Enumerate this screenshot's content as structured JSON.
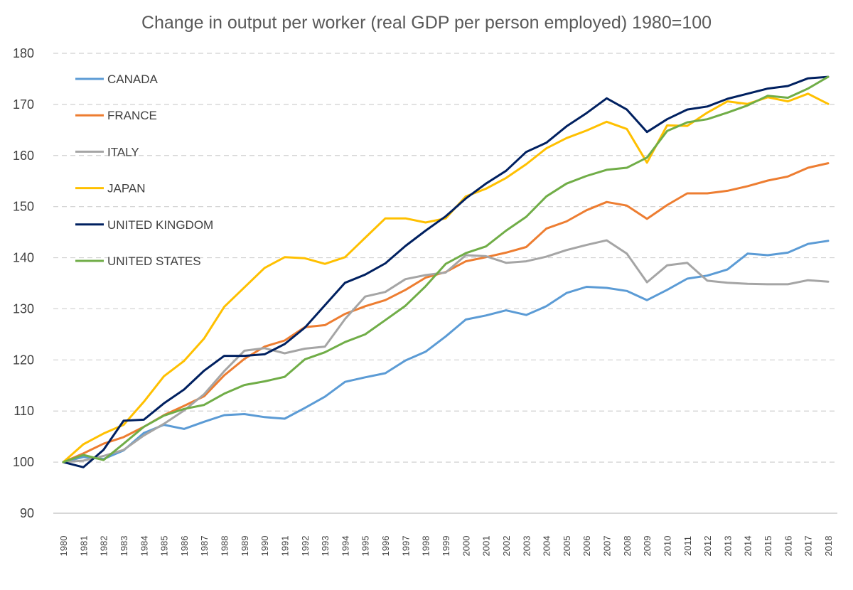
{
  "chart_data": {
    "type": "line",
    "title": "Change in output per worker (real GDP per person employed) 1980=100",
    "xlabel": "",
    "ylabel": "",
    "ylim": [
      90,
      180
    ],
    "yticks": [
      90,
      100,
      110,
      120,
      130,
      140,
      150,
      160,
      170,
      180
    ],
    "grid": true,
    "legend_position": "top-left",
    "categories": [
      "1980",
      "1981",
      "1982",
      "1983",
      "1984",
      "1985",
      "1986",
      "1987",
      "1988",
      "1989",
      "1990",
      "1991",
      "1992",
      "1993",
      "1994",
      "1995",
      "1996",
      "1997",
      "1998",
      "1999",
      "2000",
      "2001",
      "2002",
      "2003",
      "2004",
      "2005",
      "2006",
      "2007",
      "2008",
      "2009",
      "2010",
      "2011",
      "2012",
      "2013",
      "2014",
      "2015",
      "2016",
      "2017",
      "2018"
    ],
    "series": [
      {
        "name": "CANADA",
        "color": "#5B9BD5",
        "values": [
          100,
          101.0,
          100.6,
          102.3,
          105.7,
          107.3,
          106.5,
          107.9,
          109.2,
          109.4,
          108.8,
          108.5,
          110.6,
          112.8,
          115.7,
          116.6,
          117.4,
          119.9,
          121.6,
          124.6,
          127.9,
          128.7,
          129.7,
          128.8,
          130.5,
          133.1,
          134.3,
          134.1,
          133.5,
          131.7,
          133.7,
          135.9,
          136.5,
          137.7,
          140.8,
          140.5,
          141.0,
          142.7,
          143.3
        ]
      },
      {
        "name": "FRANCE",
        "color": "#ED7D31",
        "values": [
          100,
          101.7,
          103.6,
          104.9,
          106.9,
          109.2,
          111.0,
          112.9,
          117.0,
          120.2,
          122.6,
          123.8,
          126.4,
          126.8,
          129.0,
          130.5,
          131.7,
          133.7,
          136.1,
          137.2,
          139.3,
          140.1,
          141.0,
          142.1,
          145.7,
          147.1,
          149.3,
          150.9,
          150.2,
          147.6,
          150.3,
          152.6,
          152.6,
          153.1,
          154.0,
          155.1,
          155.9,
          157.6,
          158.5
        ]
      },
      {
        "name": "ITALY",
        "color": "#A5A5A5",
        "values": [
          100,
          100.3,
          101.2,
          102.4,
          105.2,
          107.5,
          110.1,
          113.3,
          117.8,
          121.8,
          122.3,
          121.3,
          122.2,
          122.6,
          128.0,
          132.4,
          133.3,
          135.8,
          136.6,
          137.1,
          140.5,
          140.3,
          139.0,
          139.3,
          140.2,
          141.5,
          142.5,
          143.4,
          140.8,
          135.2,
          138.5,
          139.0,
          135.5,
          135.1,
          134.9,
          134.8,
          134.8,
          135.6,
          135.3
        ]
      },
      {
        "name": "JAPAN",
        "color": "#FFC000",
        "values": [
          100,
          103.5,
          105.6,
          107.3,
          111.8,
          116.8,
          119.8,
          124.2,
          130.4,
          134.2,
          138.0,
          140.1,
          139.9,
          138.8,
          140.1,
          143.9,
          147.7,
          147.7,
          146.9,
          147.7,
          152.0,
          153.5,
          155.6,
          158.3,
          161.4,
          163.4,
          164.9,
          166.6,
          165.2,
          158.6,
          165.9,
          165.8,
          168.4,
          170.6,
          170.1,
          171.4,
          170.6,
          172.1,
          170.1
        ]
      },
      {
        "name": "UNITED KINGDOM",
        "color": "#002060",
        "values": [
          100,
          99.0,
          102.4,
          108.1,
          108.3,
          111.5,
          114.2,
          117.9,
          120.8,
          120.8,
          121.1,
          123.1,
          126.3,
          130.7,
          135.1,
          136.7,
          138.9,
          142.3,
          145.3,
          148.1,
          151.6,
          154.5,
          157.0,
          160.7,
          162.5,
          165.7,
          168.3,
          171.2,
          169.0,
          164.6,
          167.1,
          169.0,
          169.6,
          171.1,
          172.1,
          173.1,
          173.6,
          175.1,
          175.4
        ]
      },
      {
        "name": "UNITED STATES",
        "color": "#70AD47",
        "values": [
          100,
          101.4,
          100.4,
          103.6,
          106.9,
          109.1,
          110.4,
          111.2,
          113.4,
          115.1,
          115.8,
          116.7,
          120.1,
          121.5,
          123.5,
          125.0,
          127.8,
          130.6,
          134.4,
          138.8,
          140.9,
          142.2,
          145.3,
          148.0,
          152.0,
          154.5,
          156.0,
          157.2,
          157.6,
          159.6,
          164.8,
          166.5,
          167.1,
          168.4,
          169.8,
          171.7,
          171.3,
          173.1,
          175.4
        ]
      }
    ]
  }
}
